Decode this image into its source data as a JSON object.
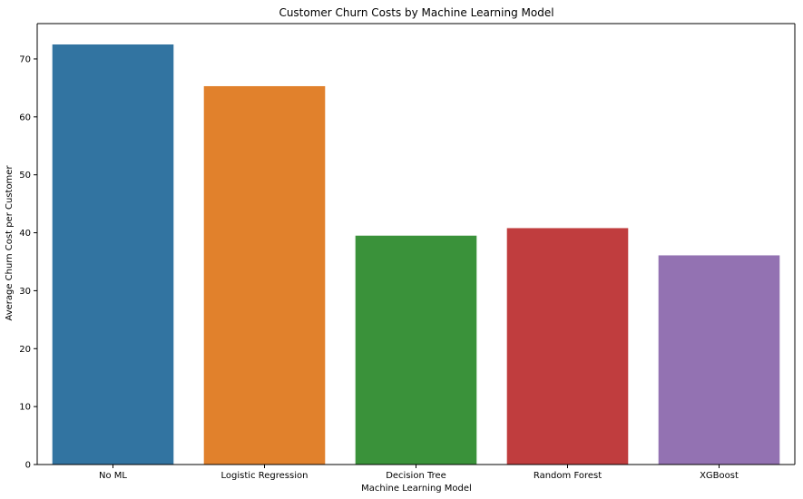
{
  "chart_data": {
    "type": "bar",
    "title": "Customer Churn Costs by Machine Learning Model",
    "xlabel": "Machine Learning Model",
    "ylabel": "Average Churn Cost per Customer",
    "categories": [
      "No ML",
      "Logistic Regression",
      "Decision Tree",
      "Random Forest",
      "XGBoost"
    ],
    "values": [
      72.5,
      65.3,
      39.5,
      40.8,
      36.1
    ],
    "colors": [
      "#3274a1",
      "#e1812c",
      "#3a923a",
      "#c03d3e",
      "#9372b2"
    ],
    "ylim": [
      0,
      76.1
    ],
    "yticks": [
      0,
      10,
      20,
      30,
      40,
      50,
      60,
      70
    ],
    "ytick_labels": [
      "0",
      "10",
      "20",
      "30",
      "40",
      "50",
      "60",
      "70"
    ],
    "grid": false,
    "legend": "none"
  }
}
